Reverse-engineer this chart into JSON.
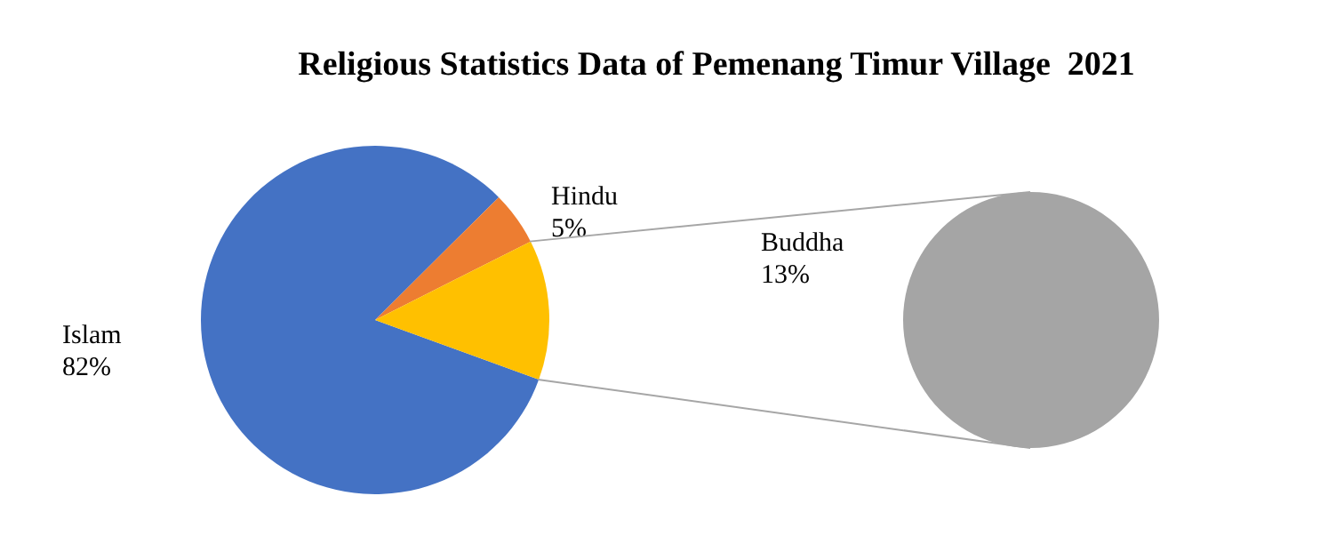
{
  "chart_data": [
    {
      "type": "pie",
      "title": "Religious Statistics Data of Pemenang Timur Village  2021",
      "categories": [
        "Islam",
        "Hindu",
        null
      ],
      "values": [
        82,
        5,
        13
      ],
      "colors": [
        "#4472c4",
        "#ed7d31",
        "#ffc000"
      ],
      "value_labels": [
        "82%",
        "5%",
        null
      ]
    },
    {
      "type": "pie",
      "categories": [
        "Buddha"
      ],
      "values": [
        13
      ],
      "colors": [
        "#a5a5a5"
      ],
      "value_labels": [
        "13%"
      ]
    }
  ]
}
